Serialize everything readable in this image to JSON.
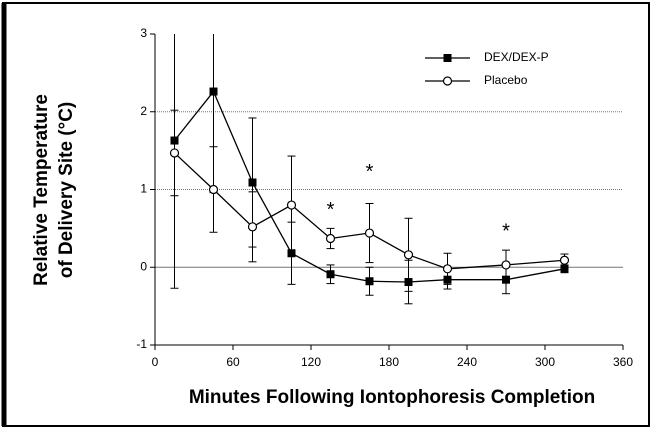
{
  "chart_data": {
    "type": "line",
    "xlabel": "Minutes Following Iontophoresis Completion",
    "ylabel": [
      "Relative Temperature",
      "of Delivery Site (°C)"
    ],
    "xlim": [
      0,
      360
    ],
    "xticks": [
      0,
      60,
      120,
      180,
      240,
      300,
      360
    ],
    "ylim": [
      -1,
      3
    ],
    "yticks": [
      -1,
      0,
      1,
      2,
      3
    ],
    "grid": true,
    "legend": "upper right",
    "x": [
      15,
      45,
      75,
      105,
      135,
      165,
      195,
      225,
      270,
      315
    ],
    "series": [
      {
        "name": "DEX/DEX-P",
        "color": "#000000",
        "marker": "filled-square",
        "values": [
          1.63,
          2.26,
          1.09,
          0.18,
          -0.09,
          -0.18,
          -0.19,
          -0.16,
          -0.16,
          -0.02
        ],
        "errors": [
          1.9,
          1.3,
          0.83,
          0.4,
          0.12,
          0.18,
          0.28,
          0.12,
          0.18,
          0.05
        ]
      },
      {
        "name": "Placebo",
        "color": "#000000",
        "marker": "open-circle",
        "values": [
          1.47,
          1.0,
          0.52,
          0.8,
          0.37,
          0.44,
          0.16,
          -0.02,
          0.03,
          0.09
        ],
        "errors": [
          0.55,
          0.55,
          0.45,
          0.63,
          0.13,
          0.38,
          0.47,
          0.2,
          0.19,
          0.08
        ]
      }
    ],
    "annotations": [
      {
        "text": "*",
        "x": 135,
        "y": 0.78
      },
      {
        "text": "*",
        "x": 165,
        "y": 1.27
      },
      {
        "text": "*",
        "x": 270,
        "y": 0.5
      }
    ]
  }
}
